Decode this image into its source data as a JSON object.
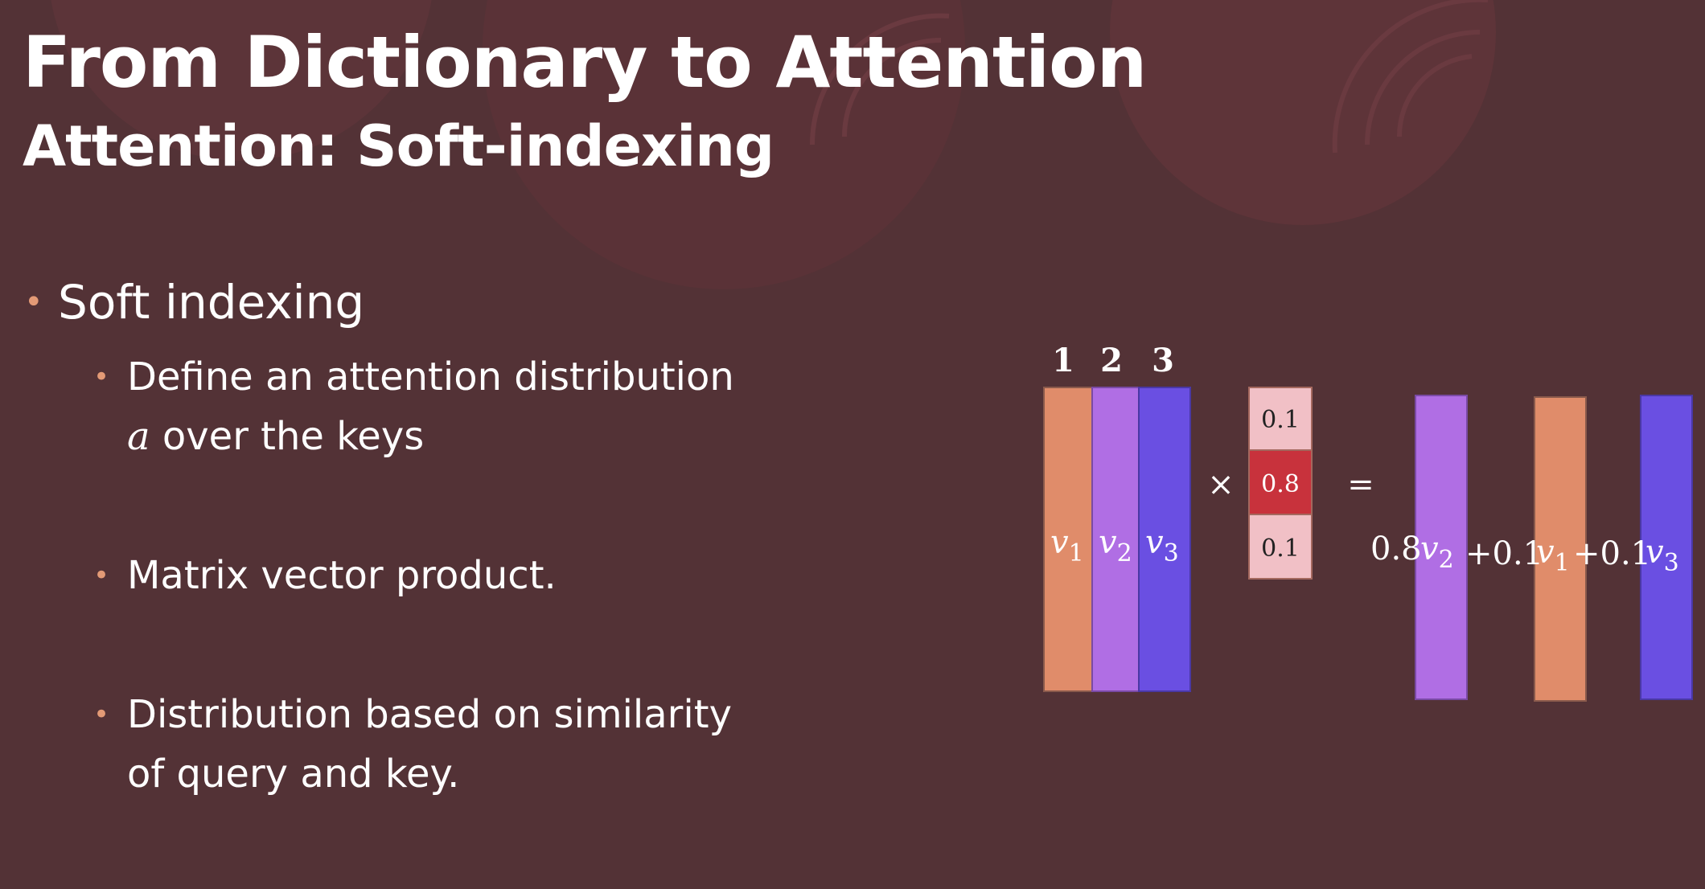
{
  "slide": {
    "title": "From Dictionary to Attention",
    "subtitle": "Attention: Soft-indexing"
  },
  "bullets": {
    "main": "Soft indexing",
    "sub1_line1": "Define an attention distribution",
    "sub1_var": "a",
    "sub1_line2_rest": " over the keys",
    "sub2": "Matrix vector product.",
    "sub3_line1": "Distribution based on similarity",
    "sub3_line2": "of query and key."
  },
  "diagram": {
    "column_indices": [
      "1",
      "2",
      "3"
    ],
    "value_label": "v",
    "subscripts": [
      "1",
      "2",
      "3"
    ],
    "times_symbol": "×",
    "equals_symbol": "=",
    "weights": [
      "0.1",
      "0.8",
      "0.1"
    ],
    "result_coefficients": [
      "0.8",
      "+0.1",
      "+0.1"
    ],
    "colors": {
      "v1": "#e08c6a",
      "v2": "#b06ee4",
      "v3": "#6a4fe2",
      "weight_low": "#f1c0c6",
      "weight_high": "#c8323c",
      "bullet_dot": "#e39a76",
      "background": "#533236"
    }
  }
}
